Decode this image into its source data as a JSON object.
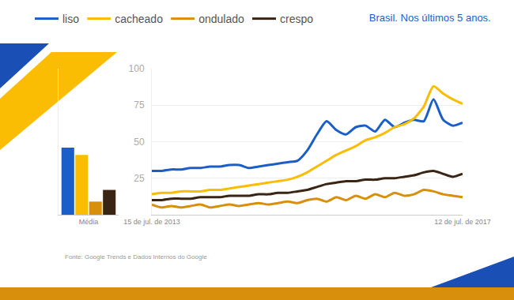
{
  "chart_data": [
    {
      "type": "line",
      "title": "Brasil. Nos últimos 5 anos.",
      "categories": [
        "15 de jul. de 2013",
        null,
        null,
        null,
        null,
        null,
        null,
        null,
        null,
        null,
        null,
        null,
        null,
        null,
        null,
        null,
        null,
        null,
        null,
        null,
        null,
        null,
        null,
        null,
        null,
        null,
        null,
        null,
        null,
        null,
        null,
        null,
        "12 de jul. de 2017"
      ],
      "series": [
        {
          "name": "liso",
          "color": "#1a5fc7",
          "values": [
            30,
            30,
            31,
            31,
            32,
            32,
            33,
            33,
            34,
            34,
            32,
            33,
            34,
            35,
            36,
            37,
            44,
            55,
            64,
            58,
            55,
            60,
            61,
            57,
            65,
            60,
            63,
            65,
            64,
            79,
            65,
            61,
            63
          ]
        },
        {
          "name": "cacheado",
          "color": "#fbbc04",
          "values": [
            14,
            15,
            15,
            16,
            16,
            16,
            17,
            17,
            18,
            19,
            20,
            21,
            22,
            23,
            24,
            26,
            29,
            33,
            37,
            41,
            44,
            47,
            51,
            53,
            56,
            60,
            62,
            66,
            74,
            88,
            83,
            79,
            76
          ]
        },
        {
          "name": "ondulado",
          "color": "#d8900c",
          "values": [
            7,
            5,
            6,
            5,
            6,
            7,
            5,
            6,
            7,
            6,
            7,
            8,
            7,
            8,
            9,
            8,
            10,
            11,
            9,
            12,
            10,
            13,
            11,
            14,
            12,
            15,
            13,
            14,
            17,
            16,
            14,
            13,
            12
          ]
        },
        {
          "name": "crespo",
          "color": "#3a2414",
          "values": [
            10,
            10,
            11,
            11,
            11,
            12,
            12,
            12,
            13,
            13,
            13,
            14,
            14,
            15,
            15,
            16,
            17,
            19,
            21,
            22,
            23,
            23,
            24,
            24,
            25,
            25,
            26,
            27,
            29,
            30,
            28,
            26,
            28
          ]
        }
      ],
      "ylim": [
        0,
        100
      ],
      "yticks": [
        25,
        50,
        75,
        100
      ],
      "grid": true,
      "legend": "top-left",
      "annotations": [
        "Fonte: Google Trends e Dados Internos do Google"
      ]
    },
    {
      "type": "bar",
      "categories": [
        "Média"
      ],
      "series": [
        {
          "name": "liso",
          "color": "#1a5fc7",
          "values": [
            46
          ]
        },
        {
          "name": "cacheado",
          "color": "#fbbc04",
          "values": [
            41
          ]
        },
        {
          "name": "ondulado",
          "color": "#d8900c",
          "values": [
            9
          ]
        },
        {
          "name": "crespo",
          "color": "#3a2414",
          "values": [
            17
          ]
        }
      ],
      "ylim": [
        0,
        100
      ],
      "tick_labels": "x"
    }
  ]
}
